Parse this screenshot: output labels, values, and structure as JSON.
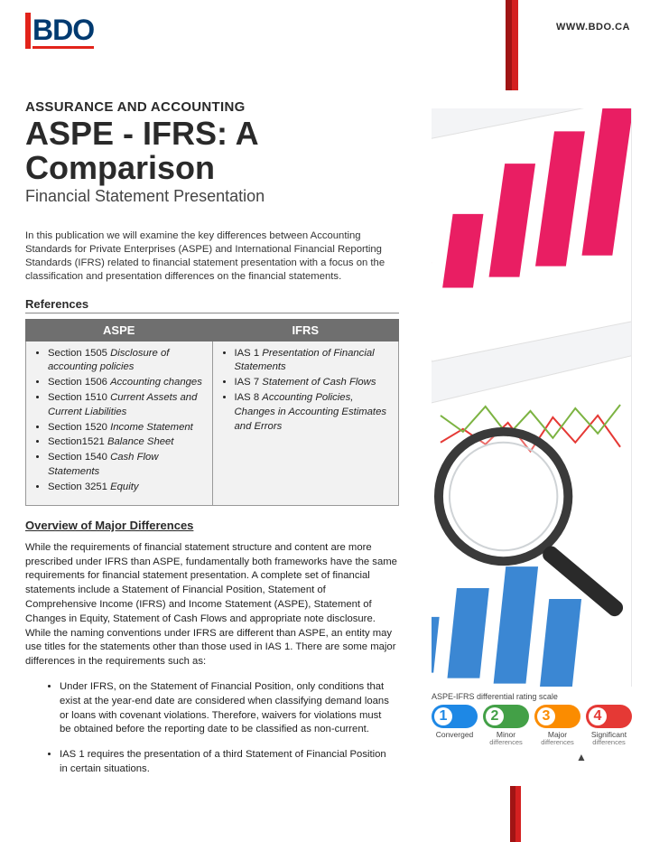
{
  "brand": {
    "logo_text": "BDO",
    "logo_red": "#e2231a",
    "logo_blue": "#003a70",
    "url": "WWW.BDO.CA"
  },
  "header": {
    "pretitle": "ASSURANCE AND ACCOUNTING",
    "title": "ASPE - IFRS: A Comparison",
    "subtitle": "Financial Statement Presentation"
  },
  "intro": "In this publication we will examine the key differences between Accounting Standards for Private Enterprises (ASPE) and International Financial Reporting Standards (IFRS) related to financial statement presentation with a focus on the classification and presentation differences on the financial statements.",
  "references": {
    "heading": "References",
    "columns": [
      "ASPE",
      "IFRS"
    ],
    "aspe": [
      {
        "plain": "Section 1505 ",
        "ital": "Disclosure of accounting policies"
      },
      {
        "plain": "Section 1506 ",
        "ital": "Accounting changes"
      },
      {
        "plain": "Section 1510 ",
        "ital": "Current Assets and Current Liabilities"
      },
      {
        "plain": "Section 1520 ",
        "ital": "Income Statement"
      },
      {
        "plain": "Section1521 ",
        "ital": "Balance Sheet"
      },
      {
        "plain": "Section 1540 ",
        "ital": "Cash Flow Statements"
      },
      {
        "plain": "Section 3251 ",
        "ital": "Equity"
      }
    ],
    "ifrs": [
      {
        "plain": "IAS 1 ",
        "ital": "Presentation of Financial Statements"
      },
      {
        "plain": "IAS 7 ",
        "ital": "Statement of Cash Flows"
      },
      {
        "plain": "IAS 8 ",
        "ital": "Accounting Policies, Changes in Accounting Estimates and Errors"
      }
    ]
  },
  "overview": {
    "heading": "Overview of Major Differences",
    "body": "While the requirements of financial statement structure and content are more prescribed under IFRS than ASPE, fundamentally both frameworks have the same requirements for financial statement presentation.  A complete set of financial statements include a Statement of Financial Position, Statement of Comprehensive Income (IFRS) and Income Statement (ASPE), Statement of Changes in Equity, Statement of Cash Flows and appropriate note disclosure. While the naming conventions under IFRS are different than ASPE, an entity may use titles for the statements other than those used in IAS 1. There are some major differences in the requirements such as:",
    "bullets": [
      "Under IFRS, on the Statement of Financial Position, only conditions that exist at the year-end date are considered when classifying demand loans or loans with covenant violations. Therefore, waivers for violations must be obtained before the reporting date to be classified as non-current.",
      "IAS 1 requires the presentation of a third Statement of Financial Position in certain situations."
    ]
  },
  "hero_chart": {
    "pink_bars": {
      "color": "#e91e63",
      "heights": [
        40,
        82,
        126,
        150,
        172
      ]
    },
    "blue_bars": {
      "color": "#2a7dcf",
      "heights": [
        30,
        62,
        100,
        130,
        100
      ]
    },
    "line_series": {
      "colors": {
        "red": "#e53935",
        "green": "#7cb342"
      },
      "red_points": [
        [
          0,
          70
        ],
        [
          25,
          55
        ],
        [
          50,
          72
        ],
        [
          75,
          48
        ],
        [
          100,
          80
        ],
        [
          125,
          42
        ],
        [
          150,
          70
        ],
        [
          175,
          40
        ],
        [
          200,
          75
        ]
      ],
      "green_points": [
        [
          0,
          40
        ],
        [
          25,
          58
        ],
        [
          50,
          30
        ],
        [
          75,
          62
        ],
        [
          100,
          35
        ],
        [
          125,
          65
        ],
        [
          150,
          32
        ],
        [
          175,
          60
        ],
        [
          200,
          28
        ]
      ]
    },
    "magnifier": {
      "ring_color": "#3a3a3a",
      "handle_color": "#2a2a2a"
    },
    "background": "#f3f4f6",
    "paper": "#ffffff",
    "grid": "#e0e0e0"
  },
  "scale": {
    "title": "ASPE-IFRS differential rating scale",
    "items": [
      {
        "n": "1",
        "label1": "Converged",
        "label2": "",
        "bg": "#1e88e5",
        "fg": "#1e88e5"
      },
      {
        "n": "2",
        "label1": "Minor",
        "label2": "differences",
        "bg": "#43a047",
        "fg": "#43a047"
      },
      {
        "n": "3",
        "label1": "Major",
        "label2": "differences",
        "bg": "#fb8c00",
        "fg": "#fb8c00"
      },
      {
        "n": "4",
        "label1": "Significant",
        "label2": "differences",
        "bg": "#e53935",
        "fg": "#e53935"
      }
    ],
    "pointer_index": 2
  }
}
